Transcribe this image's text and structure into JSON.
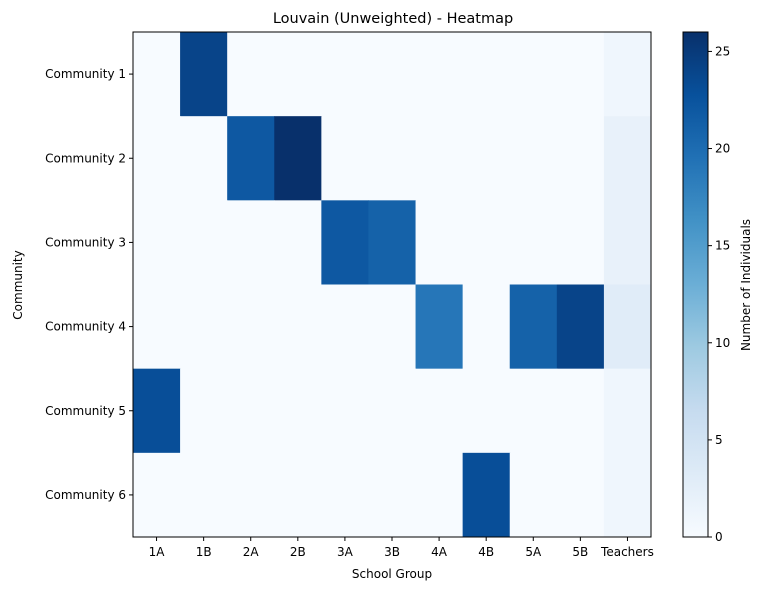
{
  "chart_data": {
    "type": "heatmap",
    "title": "Louvain (Unweighted) - Heatmap",
    "xlabel": "School Group",
    "ylabel": "Community",
    "x_categories": [
      "1A",
      "1B",
      "2A",
      "2B",
      "3A",
      "3B",
      "4A",
      "4B",
      "5A",
      "5B",
      "Teachers"
    ],
    "y_categories": [
      "Community 1",
      "Community 2",
      "Community 3",
      "Community 4",
      "Community 5",
      "Community 6"
    ],
    "values": [
      [
        0,
        24,
        0,
        0,
        0,
        0,
        0,
        0,
        0,
        0,
        1
      ],
      [
        0,
        0,
        22,
        26,
        0,
        0,
        0,
        0,
        0,
        0,
        2
      ],
      [
        0,
        0,
        0,
        0,
        22,
        21,
        0,
        0,
        0,
        0,
        2
      ],
      [
        0,
        0,
        0,
        0,
        0,
        0,
        19,
        0,
        21,
        24,
        3
      ],
      [
        23,
        0,
        0,
        0,
        0,
        0,
        0,
        0,
        0,
        0,
        1
      ],
      [
        0,
        0,
        0,
        0,
        0,
        0,
        0,
        23,
        0,
        0,
        1
      ]
    ],
    "colorbar": {
      "label": "Number of Individuals",
      "range": [
        0,
        26
      ],
      "ticks": [
        0,
        5,
        10,
        15,
        20,
        25
      ],
      "colormap": "Blues"
    }
  }
}
